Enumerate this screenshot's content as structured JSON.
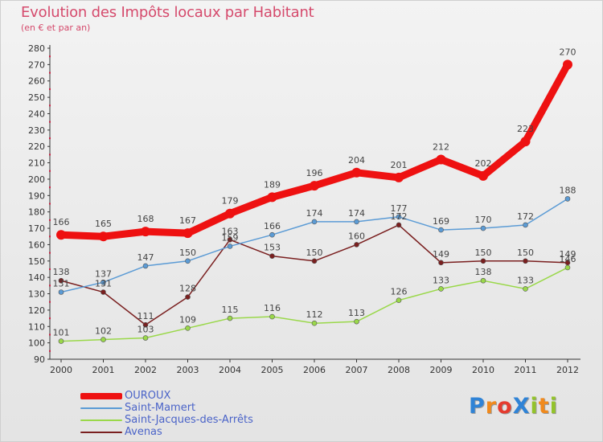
{
  "title": "Evolution des Impôts locaux par Habitant",
  "subtitle": "(en € et par an)",
  "logo": {
    "text": "ProXiti",
    "letters": [
      "P",
      "r",
      "o",
      "X",
      "i",
      "t",
      "i"
    ],
    "colors": [
      "#2f83d6",
      "#f08a1d",
      "#e53b2f",
      "#2f83d6",
      "#93c32a",
      "#f08a1d",
      "#93c32a"
    ]
  },
  "chart_data": {
    "type": "line",
    "title": "Evolution des Impôts locaux par Habitant",
    "subtitle": "(en € et par an)",
    "xlabel": "",
    "ylabel": "",
    "categories": [
      "2000",
      "2001",
      "2002",
      "2003",
      "2004",
      "2005",
      "2006",
      "2007",
      "2008",
      "2009",
      "2010",
      "2011",
      "2012"
    ],
    "ylim": [
      90,
      280
    ],
    "yticks": [
      90,
      100,
      110,
      120,
      130,
      140,
      150,
      160,
      170,
      180,
      190,
      200,
      210,
      220,
      230,
      240,
      250,
      260,
      270,
      280
    ],
    "series": [
      {
        "name": "OUROUX",
        "color": "#ee1111",
        "width": "thick",
        "values": [
          166,
          165,
          168,
          167,
          179,
          189,
          196,
          204,
          201,
          212,
          202,
          223,
          270
        ],
        "labels": [
          "166",
          "165",
          "168",
          "167",
          "179",
          "189",
          "196",
          "204",
          "201",
          "212",
          "202",
          "223",
          "270"
        ]
      },
      {
        "name": "Saint-Mamert",
        "color": "#5b9bd5",
        "width": "thin",
        "values": [
          131,
          137,
          147,
          150,
          159,
          166,
          174,
          174,
          177,
          169,
          170,
          172,
          188
        ],
        "labels": [
          "131",
          "137",
          "147",
          "150",
          "159",
          "166",
          "174",
          "174",
          "177",
          "169",
          "170",
          "172",
          "188"
        ]
      },
      {
        "name": "Saint-Jacques-des-Arrêts",
        "color": "#9ad84a",
        "width": "thin",
        "values": [
          101,
          102,
          103,
          109,
          115,
          116,
          112,
          113,
          126,
          133,
          138,
          133,
          146
        ],
        "labels": [
          "101",
          "102",
          "103",
          "109",
          "115",
          "116",
          "112",
          "113",
          "126",
          "133",
          "138",
          "133",
          "146"
        ]
      },
      {
        "name": "Avenas",
        "color": "#7a1f1f",
        "width": "thin",
        "values": [
          138,
          131,
          111,
          128,
          163,
          153,
          150,
          160,
          172,
          149,
          150,
          150,
          149
        ],
        "labels": [
          "138",
          "131",
          "111",
          "128",
          "163",
          "153",
          "150",
          "160",
          "172",
          "149",
          "150",
          "150",
          "149"
        ]
      }
    ],
    "legend": [
      "OUROUX",
      "Saint-Mamert",
      "Saint-Jacques-des-Arrêts",
      "Avenas"
    ],
    "legend_position": "bottom-left",
    "grid": false
  }
}
